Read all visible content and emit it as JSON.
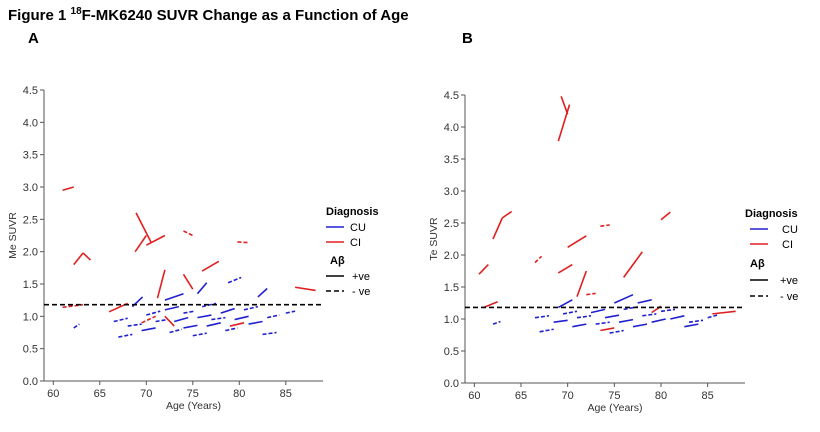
{
  "figure": {
    "title_prefix": "Figure 1 ",
    "title_sup": "18",
    "title_rest": "F-MK6240 SUVR Change as a Function of Age"
  },
  "colors": {
    "cu": "#2020d0",
    "ci": "#e02020",
    "threshold": "#000000",
    "axis": "#555555"
  },
  "legend": {
    "diagnosis_title": "Diagnosis",
    "cu_label": "CU",
    "ci_label": "CI",
    "abeta_title": "Aβ",
    "pos_label": "+ve",
    "neg_label": "- ve"
  },
  "chart_data": [
    {
      "panel": "A",
      "type": "line",
      "xlabel": "Age (Years)",
      "ylabel": "Me SUVR",
      "xlim": [
        59,
        89
      ],
      "ylim": [
        0,
        4.5
      ],
      "xticks": [
        60,
        65,
        70,
        75,
        80,
        85
      ],
      "yticks": [
        0.0,
        0.5,
        1.0,
        1.5,
        2.0,
        2.5,
        3.0,
        3.5,
        4.0,
        4.5
      ],
      "threshold": 1.18,
      "series": [
        {
          "dx": "CI",
          "ab": "pos",
          "x1": 61,
          "y1": 2.95,
          "x2": 62.2,
          "y2": 3.0
        },
        {
          "dx": "CI",
          "ab": "pos",
          "x1": 62.2,
          "y1": 1.8,
          "x2": 63.2,
          "y2": 1.98
        },
        {
          "dx": "CI",
          "ab": "pos",
          "x1": 63.2,
          "y1": 1.98,
          "x2": 64.0,
          "y2": 1.87
        },
        {
          "dx": "CI",
          "ab": "neg",
          "x1": 61.0,
          "y1": 1.14,
          "x2": 63.2,
          "y2": 1.18
        },
        {
          "dx": "CI",
          "ab": "pos",
          "x1": 68.9,
          "y1": 2.6,
          "x2": 70.5,
          "y2": 2.15
        },
        {
          "dx": "CI",
          "ab": "pos",
          "x1": 68.8,
          "y1": 2.0,
          "x2": 70.0,
          "y2": 2.25
        },
        {
          "dx": "CI",
          "ab": "pos",
          "x1": 70.0,
          "y1": 2.1,
          "x2": 72.0,
          "y2": 2.25
        },
        {
          "dx": "CI",
          "ab": "neg",
          "x1": 74.0,
          "y1": 2.32,
          "x2": 75.0,
          "y2": 2.25
        },
        {
          "dx": "CI",
          "ab": "neg",
          "x1": 79.8,
          "y1": 2.15,
          "x2": 81.0,
          "y2": 2.14
        },
        {
          "dx": "CI",
          "ab": "pos",
          "x1": 71.2,
          "y1": 1.28,
          "x2": 72.0,
          "y2": 1.72
        },
        {
          "dx": "CI",
          "ab": "pos",
          "x1": 74.0,
          "y1": 1.65,
          "x2": 75.0,
          "y2": 1.42
        },
        {
          "dx": "CI",
          "ab": "pos",
          "x1": 76.0,
          "y1": 1.7,
          "x2": 77.8,
          "y2": 1.85
        },
        {
          "dx": "CI",
          "ab": "pos",
          "x1": 86.0,
          "y1": 1.45,
          "x2": 88.2,
          "y2": 1.4
        },
        {
          "dx": "CI",
          "ab": "pos",
          "x1": 66.0,
          "y1": 1.07,
          "x2": 68.0,
          "y2": 1.2
        },
        {
          "dx": "CI",
          "ab": "neg",
          "x1": 69.5,
          "y1": 0.9,
          "x2": 71.0,
          "y2": 1.0
        },
        {
          "dx": "CI",
          "ab": "pos",
          "x1": 72.0,
          "y1": 1.0,
          "x2": 73.0,
          "y2": 0.85
        },
        {
          "dx": "CI",
          "ab": "pos",
          "x1": 79.0,
          "y1": 0.85,
          "x2": 80.5,
          "y2": 0.9
        },
        {
          "dx": "CU",
          "ab": "pos",
          "x1": 68.5,
          "y1": 1.15,
          "x2": 69.6,
          "y2": 1.3
        },
        {
          "dx": "CU",
          "ab": "pos",
          "x1": 72.0,
          "y1": 1.25,
          "x2": 74.0,
          "y2": 1.35
        },
        {
          "dx": "CU",
          "ab": "pos",
          "x1": 75.5,
          "y1": 1.35,
          "x2": 76.5,
          "y2": 1.52
        },
        {
          "dx": "CU",
          "ab": "neg",
          "x1": 78.8,
          "y1": 1.52,
          "x2": 80.2,
          "y2": 1.6
        },
        {
          "dx": "CU",
          "ab": "pos",
          "x1": 82.0,
          "y1": 1.3,
          "x2": 83.0,
          "y2": 1.43
        },
        {
          "dx": "CU",
          "ab": "neg",
          "x1": 62.2,
          "y1": 0.82,
          "x2": 62.8,
          "y2": 0.88
        },
        {
          "dx": "CU",
          "ab": "neg",
          "x1": 66.5,
          "y1": 0.92,
          "x2": 68.0,
          "y2": 0.97
        },
        {
          "dx": "CU",
          "ab": "neg",
          "x1": 67.0,
          "y1": 0.68,
          "x2": 68.5,
          "y2": 0.72
        },
        {
          "dx": "CU",
          "ab": "neg",
          "x1": 68.0,
          "y1": 0.85,
          "x2": 69.5,
          "y2": 0.88
        },
        {
          "dx": "CU",
          "ab": "pos",
          "x1": 69.5,
          "y1": 0.78,
          "x2": 71.0,
          "y2": 0.82
        },
        {
          "dx": "CU",
          "ab": "neg",
          "x1": 70.0,
          "y1": 1.02,
          "x2": 71.5,
          "y2": 1.08
        },
        {
          "dx": "CU",
          "ab": "neg",
          "x1": 71.0,
          "y1": 0.92,
          "x2": 72.3,
          "y2": 0.95
        },
        {
          "dx": "CU",
          "ab": "pos",
          "x1": 72.0,
          "y1": 1.1,
          "x2": 73.5,
          "y2": 1.15
        },
        {
          "dx": "CU",
          "ab": "neg",
          "x1": 72.5,
          "y1": 0.75,
          "x2": 73.8,
          "y2": 0.8
        },
        {
          "dx": "CU",
          "ab": "pos",
          "x1": 73.0,
          "y1": 0.92,
          "x2": 74.5,
          "y2": 0.98
        },
        {
          "dx": "CU",
          "ab": "neg",
          "x1": 74.0,
          "y1": 1.05,
          "x2": 75.2,
          "y2": 1.08
        },
        {
          "dx": "CU",
          "ab": "pos",
          "x1": 74.0,
          "y1": 0.82,
          "x2": 75.5,
          "y2": 0.86
        },
        {
          "dx": "CU",
          "ab": "neg",
          "x1": 75.0,
          "y1": 0.7,
          "x2": 76.5,
          "y2": 0.74
        },
        {
          "dx": "CU",
          "ab": "pos",
          "x1": 75.5,
          "y1": 0.98,
          "x2": 77.0,
          "y2": 1.02
        },
        {
          "dx": "CU",
          "ab": "neg",
          "x1": 76.0,
          "y1": 1.15,
          "x2": 77.5,
          "y2": 1.2
        },
        {
          "dx": "CU",
          "ab": "pos",
          "x1": 76.5,
          "y1": 0.85,
          "x2": 78.0,
          "y2": 0.9
        },
        {
          "dx": "CU",
          "ab": "neg",
          "x1": 77.0,
          "y1": 0.95,
          "x2": 78.5,
          "y2": 0.98
        },
        {
          "dx": "CU",
          "ab": "pos",
          "x1": 78.0,
          "y1": 1.05,
          "x2": 79.5,
          "y2": 1.12
        },
        {
          "dx": "CU",
          "ab": "neg",
          "x1": 78.5,
          "y1": 0.78,
          "x2": 79.8,
          "y2": 0.82
        },
        {
          "dx": "CU",
          "ab": "pos",
          "x1": 79.5,
          "y1": 0.95,
          "x2": 81.0,
          "y2": 1.0
        },
        {
          "dx": "CU",
          "ab": "neg",
          "x1": 80.5,
          "y1": 1.1,
          "x2": 82.0,
          "y2": 1.15
        },
        {
          "dx": "CU",
          "ab": "pos",
          "x1": 81.0,
          "y1": 0.88,
          "x2": 82.5,
          "y2": 0.92
        },
        {
          "dx": "CU",
          "ab": "neg",
          "x1": 82.5,
          "y1": 0.72,
          "x2": 84.0,
          "y2": 0.75
        },
        {
          "dx": "CU",
          "ab": "neg",
          "x1": 83.0,
          "y1": 0.98,
          "x2": 84.3,
          "y2": 1.02
        },
        {
          "dx": "CU",
          "ab": "neg",
          "x1": 85.0,
          "y1": 1.05,
          "x2": 86.0,
          "y2": 1.08
        }
      ]
    },
    {
      "panel": "B",
      "type": "line",
      "xlabel": "Age (Years)",
      "ylabel": "Te SUVR",
      "xlim": [
        59,
        89
      ],
      "ylim": [
        0,
        4.5
      ],
      "xticks": [
        60,
        65,
        70,
        75,
        80,
        85
      ],
      "yticks": [
        0.0,
        0.5,
        1.0,
        1.5,
        2.0,
        2.5,
        3.0,
        3.5,
        4.0,
        4.5
      ],
      "threshold": 1.18,
      "series": [
        {
          "dx": "CI",
          "ab": "pos",
          "x1": 69.0,
          "y1": 3.78,
          "x2": 70.2,
          "y2": 4.35
        },
        {
          "dx": "CI",
          "ab": "pos",
          "x1": 69.3,
          "y1": 4.48,
          "x2": 70.0,
          "y2": 4.2
        },
        {
          "dx": "CI",
          "ab": "pos",
          "x1": 62.0,
          "y1": 2.25,
          "x2": 63.0,
          "y2": 2.58
        },
        {
          "dx": "CI",
          "ab": "pos",
          "x1": 63.0,
          "y1": 2.58,
          "x2": 64.0,
          "y2": 2.68
        },
        {
          "dx": "CI",
          "ab": "pos",
          "x1": 60.5,
          "y1": 1.7,
          "x2": 61.5,
          "y2": 1.85
        },
        {
          "dx": "CI",
          "ab": "neg",
          "x1": 66.5,
          "y1": 1.88,
          "x2": 67.2,
          "y2": 1.98
        },
        {
          "dx": "CI",
          "ab": "pos",
          "x1": 69.0,
          "y1": 1.72,
          "x2": 70.5,
          "y2": 1.85
        },
        {
          "dx": "CI",
          "ab": "pos",
          "x1": 70.0,
          "y1": 2.12,
          "x2": 72.0,
          "y2": 2.3
        },
        {
          "dx": "CI",
          "ab": "neg",
          "x1": 73.5,
          "y1": 2.45,
          "x2": 74.5,
          "y2": 2.47
        },
        {
          "dx": "CI",
          "ab": "pos",
          "x1": 80.0,
          "y1": 2.55,
          "x2": 81.0,
          "y2": 2.67
        },
        {
          "dx": "CI",
          "ab": "pos",
          "x1": 71.0,
          "y1": 1.35,
          "x2": 72.0,
          "y2": 1.75
        },
        {
          "dx": "CI",
          "ab": "pos",
          "x1": 76.0,
          "y1": 1.65,
          "x2": 78.0,
          "y2": 2.05
        },
        {
          "dx": "CI",
          "ab": "pos",
          "x1": 61.0,
          "y1": 1.18,
          "x2": 62.5,
          "y2": 1.27
        },
        {
          "dx": "CI",
          "ab": "neg",
          "x1": 72.0,
          "y1": 1.38,
          "x2": 73.0,
          "y2": 1.4
        },
        {
          "dx": "CI",
          "ab": "pos",
          "x1": 79.0,
          "y1": 1.1,
          "x2": 80.0,
          "y2": 1.2
        },
        {
          "dx": "CI",
          "ab": "pos",
          "x1": 85.5,
          "y1": 1.08,
          "x2": 88.0,
          "y2": 1.12
        },
        {
          "dx": "CI",
          "ab": "pos",
          "x1": 73.5,
          "y1": 0.82,
          "x2": 75.0,
          "y2": 0.86
        },
        {
          "dx": "CU",
          "ab": "pos",
          "x1": 69.0,
          "y1": 1.18,
          "x2": 70.5,
          "y2": 1.3
        },
        {
          "dx": "CU",
          "ab": "pos",
          "x1": 75.0,
          "y1": 1.25,
          "x2": 77.0,
          "y2": 1.38
        },
        {
          "dx": "CU",
          "ab": "pos",
          "x1": 77.5,
          "y1": 1.25,
          "x2": 79.0,
          "y2": 1.3
        },
        {
          "dx": "CU",
          "ab": "neg",
          "x1": 62.0,
          "y1": 0.92,
          "x2": 62.8,
          "y2": 0.96
        },
        {
          "dx": "CU",
          "ab": "neg",
          "x1": 66.5,
          "y1": 1.02,
          "x2": 68.0,
          "y2": 1.05
        },
        {
          "dx": "CU",
          "ab": "neg",
          "x1": 67.0,
          "y1": 0.8,
          "x2": 68.5,
          "y2": 0.84
        },
        {
          "dx": "CU",
          "ab": "pos",
          "x1": 68.5,
          "y1": 0.95,
          "x2": 70.0,
          "y2": 0.98
        },
        {
          "dx": "CU",
          "ab": "neg",
          "x1": 69.5,
          "y1": 1.08,
          "x2": 71.0,
          "y2": 1.12
        },
        {
          "dx": "CU",
          "ab": "pos",
          "x1": 70.5,
          "y1": 0.88,
          "x2": 72.0,
          "y2": 0.92
        },
        {
          "dx": "CU",
          "ab": "neg",
          "x1": 71.0,
          "y1": 1.02,
          "x2": 72.5,
          "y2": 1.05
        },
        {
          "dx": "CU",
          "ab": "pos",
          "x1": 72.5,
          "y1": 1.1,
          "x2": 74.0,
          "y2": 1.15
        },
        {
          "dx": "CU",
          "ab": "neg",
          "x1": 73.0,
          "y1": 0.92,
          "x2": 74.5,
          "y2": 0.95
        },
        {
          "dx": "CU",
          "ab": "pos",
          "x1": 74.0,
          "y1": 1.02,
          "x2": 75.5,
          "y2": 1.06
        },
        {
          "dx": "CU",
          "ab": "neg",
          "x1": 74.5,
          "y1": 0.78,
          "x2": 76.0,
          "y2": 0.82
        },
        {
          "dx": "CU",
          "ab": "pos",
          "x1": 75.5,
          "y1": 0.95,
          "x2": 77.0,
          "y2": 0.99
        },
        {
          "dx": "CU",
          "ab": "neg",
          "x1": 76.0,
          "y1": 1.15,
          "x2": 77.5,
          "y2": 1.19
        },
        {
          "dx": "CU",
          "ab": "pos",
          "x1": 77.0,
          "y1": 0.88,
          "x2": 78.5,
          "y2": 0.92
        },
        {
          "dx": "CU",
          "ab": "neg",
          "x1": 78.0,
          "y1": 1.05,
          "x2": 79.5,
          "y2": 1.08
        },
        {
          "dx": "CU",
          "ab": "pos",
          "x1": 79.0,
          "y1": 0.95,
          "x2": 80.5,
          "y2": 1.0
        },
        {
          "dx": "CU",
          "ab": "neg",
          "x1": 80.0,
          "y1": 1.12,
          "x2": 81.5,
          "y2": 1.15
        },
        {
          "dx": "CU",
          "ab": "pos",
          "x1": 81.0,
          "y1": 1.0,
          "x2": 82.5,
          "y2": 1.05
        },
        {
          "dx": "CU",
          "ab": "pos",
          "x1": 82.5,
          "y1": 0.88,
          "x2": 84.0,
          "y2": 0.92
        },
        {
          "dx": "CU",
          "ab": "neg",
          "x1": 83.0,
          "y1": 0.95,
          "x2": 84.5,
          "y2": 0.98
        },
        {
          "dx": "CU",
          "ab": "neg",
          "x1": 85.0,
          "y1": 1.02,
          "x2": 86.0,
          "y2": 1.06
        }
      ]
    }
  ]
}
